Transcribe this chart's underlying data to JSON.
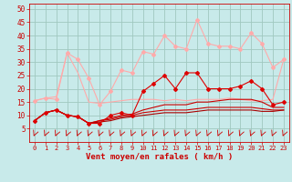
{
  "bg_color": "#c8eaea",
  "grid_color": "#a0c8c0",
  "xlabel": "Vent moyen/en rafales ( km/h )",
  "xlabel_color": "#cc0000",
  "xlim": [
    -0.5,
    23.5
  ],
  "ylim": [
    0,
    52
  ],
  "yticks": [
    5,
    10,
    15,
    20,
    25,
    30,
    35,
    40,
    45,
    50
  ],
  "xticks": [
    0,
    1,
    2,
    3,
    4,
    5,
    6,
    7,
    8,
    9,
    10,
    11,
    12,
    13,
    14,
    15,
    16,
    17,
    18,
    19,
    20,
    21,
    22,
    23
  ],
  "line1_x": [
    0,
    1,
    2,
    3,
    4,
    5,
    6,
    7,
    8,
    9,
    10,
    11,
    12,
    13,
    14,
    15,
    16,
    17,
    18,
    19,
    20,
    21,
    22,
    23
  ],
  "line1_y": [
    15.5,
    16.5,
    16,
    33.5,
    31,
    24,
    14,
    19,
    27,
    26,
    34,
    33,
    40,
    36,
    35,
    46,
    37,
    36,
    36,
    35,
    41,
    37,
    28,
    31
  ],
  "line1_color": "#ffaaaa",
  "line1_marker": true,
  "line2_x": [
    0,
    1,
    2,
    3,
    4,
    5,
    6,
    7,
    8,
    9,
    10,
    11,
    12,
    13,
    14,
    15,
    16,
    17,
    18,
    19,
    20,
    21,
    22,
    23
  ],
  "line2_y": [
    15.5,
    16.5,
    17,
    33.5,
    26,
    15,
    14.5,
    15,
    15.5,
    16,
    16,
    16,
    15.5,
    16,
    15.5,
    16,
    16,
    16,
    16.5,
    16,
    15.5,
    15.5,
    16,
    31
  ],
  "line2_color": "#ffaaaa",
  "line2_marker": false,
  "line3_x": [
    0,
    1,
    2,
    3,
    4,
    5,
    6,
    7,
    8,
    9,
    10,
    11,
    12,
    13,
    14,
    15,
    16,
    17,
    18,
    19,
    20,
    21,
    22,
    23
  ],
  "line3_y": [
    8,
    11,
    12,
    10,
    9.5,
    7,
    7,
    10,
    11,
    10,
    19,
    22,
    25,
    20,
    26,
    26,
    20,
    20,
    20,
    21,
    23,
    20,
    14,
    15
  ],
  "line3_color": "#dd0000",
  "line3_marker": true,
  "line4_x": [
    0,
    1,
    2,
    3,
    4,
    5,
    6,
    7,
    8,
    9,
    10,
    11,
    12,
    13,
    14,
    15,
    16,
    17,
    18,
    19,
    20,
    21,
    22,
    23
  ],
  "line4_y": [
    8,
    11,
    12,
    10,
    9.5,
    7,
    8,
    9,
    10,
    10.5,
    12,
    13,
    14,
    14,
    14,
    15,
    15,
    15.5,
    16,
    16,
    16,
    15,
    13,
    13
  ],
  "line4_color": "#cc0000",
  "line4_marker": false,
  "line5_x": [
    0,
    1,
    2,
    3,
    4,
    5,
    6,
    7,
    8,
    9,
    10,
    11,
    12,
    13,
    14,
    15,
    16,
    17,
    18,
    19,
    20,
    21,
    22,
    23
  ],
  "line5_y": [
    8,
    11,
    12,
    10,
    9.5,
    7,
    8,
    8.5,
    9.5,
    10,
    11,
    11.5,
    12,
    12,
    12,
    12.5,
    13,
    13,
    13,
    13,
    13,
    12.5,
    12,
    12
  ],
  "line5_color": "#cc0000",
  "line5_marker": false,
  "line6_x": [
    0,
    1,
    2,
    3,
    4,
    5,
    6,
    7,
    8,
    9,
    10,
    11,
    12,
    13,
    14,
    15,
    16,
    17,
    18,
    19,
    20,
    21,
    22,
    23
  ],
  "line6_y": [
    8,
    11,
    12,
    10,
    9.5,
    7,
    7.5,
    8,
    9,
    9.5,
    10,
    10.5,
    11,
    11,
    11,
    11.5,
    12,
    12,
    12,
    12,
    12,
    11.5,
    11.5,
    12
  ],
  "line6_color": "#aa0000",
  "line6_marker": false,
  "tick_label_color": "#cc0000",
  "axis_color": "#cc0000",
  "font_name": "monospace"
}
